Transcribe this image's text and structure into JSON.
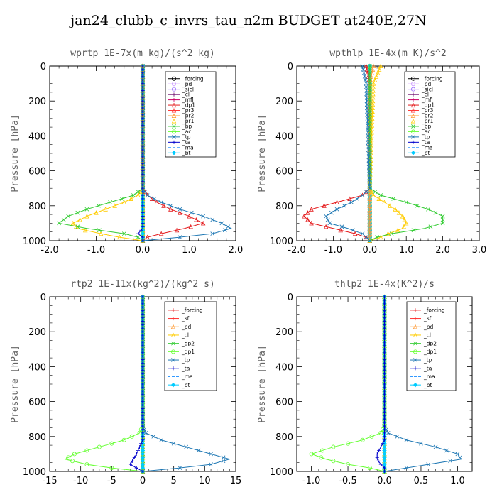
{
  "figure_title": "jan24_clubb_c_invrs_tau_n2m  BUDGET at240E,27N",
  "chart_data": [
    {
      "type": "line",
      "title": "wprtp  1E-7x(m kg)/(s^2 kg)",
      "ylabel": "Pressure [hPa]",
      "xlim": [
        -2.0,
        2.0
      ],
      "ylim": [
        1000,
        0
      ],
      "xticks": [
        -2.0,
        -1.0,
        0.0,
        1.0,
        2.0
      ],
      "xtick_labels": [
        "-2.0",
        "-1.0",
        "0.0",
        "1.0",
        "2.0"
      ],
      "yticks": [
        0,
        200,
        400,
        600,
        800,
        1000
      ],
      "ytick_labels": [
        "0",
        "200",
        "400",
        "600",
        "800",
        "1000"
      ],
      "legend_position": "top-right",
      "pressure": [
        0,
        700,
        740,
        780,
        820,
        860,
        900,
        930,
        960,
        980,
        1000
      ],
      "series": [
        {
          "name": "_forcing",
          "color": "#000000",
          "marker": "circle",
          "values": [
            0,
            0,
            0,
            0,
            0,
            0,
            0,
            0,
            0,
            0,
            0
          ]
        },
        {
          "name": "_pd",
          "color": "#cc99ff",
          "marker": "circle",
          "values": [
            0,
            0,
            0,
            0,
            0,
            0,
            0,
            0,
            0,
            0,
            0
          ]
        },
        {
          "name": "_sicl",
          "color": "#9966ff",
          "marker": "circle",
          "values": [
            0,
            0,
            0,
            0,
            0,
            0,
            0,
            0,
            0,
            0,
            0
          ]
        },
        {
          "name": "_cl",
          "color": "#660066",
          "marker": "plus",
          "values": [
            0,
            0,
            0,
            0,
            0,
            0,
            0,
            0,
            0,
            0,
            0
          ]
        },
        {
          "name": "_mfl",
          "color": "#cc0066",
          "marker": "plus",
          "values": [
            0,
            0,
            0,
            0,
            0,
            0,
            0,
            0,
            0,
            0,
            0
          ]
        },
        {
          "name": "_dp1",
          "color": "#e41a1c",
          "marker": "triangle",
          "values": [
            0,
            0,
            0.1,
            0.3,
            0.6,
            1.0,
            1.3,
            0.9,
            0.4,
            0.1,
            0
          ]
        },
        {
          "name": "_pr3",
          "color": "#ff3333",
          "marker": "triangle",
          "values": [
            0,
            0,
            0,
            0,
            0,
            0,
            0,
            0,
            0,
            0,
            0
          ]
        },
        {
          "name": "_pr2",
          "color": "#ff9933",
          "marker": "triangle",
          "values": [
            0,
            0,
            0,
            0,
            0,
            0,
            0,
            0,
            0,
            0,
            0
          ]
        },
        {
          "name": "_pr1",
          "color": "#ffcc00",
          "marker": "triangle",
          "values": [
            0,
            0,
            -0.1,
            -0.4,
            -0.8,
            -1.2,
            -1.5,
            -1.4,
            -0.9,
            -0.5,
            0
          ]
        },
        {
          "name": "_bp",
          "color": "#33cc33",
          "marker": "cross",
          "values": [
            0,
            0,
            -0.2,
            -0.7,
            -1.2,
            -1.6,
            -1.8,
            -1.2,
            -0.4,
            -0.1,
            0
          ]
        },
        {
          "name": "_ac",
          "color": "#66ff33",
          "marker": "circle",
          "values": [
            0,
            0,
            0,
            0,
            0,
            0,
            0,
            0,
            0,
            0,
            0
          ]
        },
        {
          "name": "_tp",
          "color": "#1f78b4",
          "marker": "cross",
          "values": [
            0,
            0,
            0.1,
            0.4,
            0.8,
            1.3,
            1.7,
            1.9,
            1.5,
            0.8,
            0
          ]
        },
        {
          "name": "_ta",
          "color": "#0000cc",
          "marker": "plus",
          "values": [
            0,
            0,
            0,
            0,
            0,
            0,
            0,
            0,
            -0.1,
            0,
            0
          ]
        },
        {
          "name": "_ma",
          "color": "#3399ff",
          "marker": "none",
          "values": [
            0,
            0,
            0,
            0,
            0,
            0,
            0,
            0,
            0,
            0,
            0
          ]
        },
        {
          "name": "_bt",
          "color": "#00ccff",
          "marker": "diamond",
          "values": [
            0,
            0,
            0,
            0,
            0,
            0,
            0,
            0,
            0,
            0,
            0
          ]
        }
      ]
    },
    {
      "type": "line",
      "title": "wpthlp  1E-4x(m K)/s^2",
      "ylabel": "Pressure [hPa]",
      "xlim": [
        -2.0,
        3.0
      ],
      "ylim": [
        1000,
        0
      ],
      "xticks": [
        -2.0,
        -1.0,
        0.0,
        1.0,
        2.0,
        3.0
      ],
      "xtick_labels": [
        "-2.0",
        "-1.0",
        "0.0",
        "1.0",
        "2.0",
        "3.0"
      ],
      "yticks": [
        0,
        200,
        400,
        600,
        800,
        1000
      ],
      "ytick_labels": [
        "0",
        "200",
        "400",
        "600",
        "800",
        "1000"
      ],
      "legend_position": "top-right",
      "pressure": [
        0,
        100,
        700,
        740,
        780,
        820,
        860,
        900,
        930,
        960,
        980,
        1000
      ],
      "series": [
        {
          "name": "_forcing",
          "color": "#000000",
          "marker": "circle",
          "values": [
            0,
            0,
            0,
            0,
            0,
            0,
            0,
            0,
            0,
            0,
            0,
            0
          ]
        },
        {
          "name": "_pd",
          "color": "#cc99ff",
          "marker": "circle",
          "values": [
            0,
            0,
            0,
            0,
            0,
            0,
            0,
            0,
            0,
            0,
            0,
            0
          ]
        },
        {
          "name": "_sicl",
          "color": "#9966ff",
          "marker": "circle",
          "values": [
            0,
            0,
            0,
            0,
            0,
            0,
            0,
            0,
            0,
            0,
            0,
            0
          ]
        },
        {
          "name": "_cl",
          "color": "#660066",
          "marker": "plus",
          "values": [
            0,
            0,
            0,
            0,
            0,
            0,
            0,
            0,
            0,
            0,
            0,
            0
          ]
        },
        {
          "name": "_mfl",
          "color": "#cc0066",
          "marker": "plus",
          "values": [
            0,
            0,
            0,
            0,
            0,
            0,
            0,
            0,
            0,
            0,
            0,
            0
          ]
        },
        {
          "name": "_dp1",
          "color": "#e41a1c",
          "marker": "triangle",
          "values": [
            -0.1,
            0,
            0,
            -0.2,
            -0.9,
            -1.6,
            -1.8,
            -1.6,
            -1.0,
            -0.4,
            -0.1,
            0
          ]
        },
        {
          "name": "_pr3",
          "color": "#ff3333",
          "marker": "triangle",
          "values": [
            0,
            0,
            0,
            0,
            0,
            0,
            0,
            0,
            0,
            0,
            0,
            0
          ]
        },
        {
          "name": "_pr2",
          "color": "#ff9933",
          "marker": "triangle",
          "values": [
            0.1,
            0,
            0,
            0,
            0,
            0,
            0,
            0,
            0,
            0,
            0,
            0
          ]
        },
        {
          "name": "_pr1",
          "color": "#ffcc00",
          "marker": "triangle",
          "values": [
            0.3,
            0.1,
            0,
            0.1,
            0.4,
            0.7,
            0.9,
            1.0,
            0.9,
            0.5,
            0.3,
            0
          ]
        },
        {
          "name": "_bp",
          "color": "#33cc33",
          "marker": "cross",
          "values": [
            0,
            0,
            0,
            0.3,
            1.0,
            1.6,
            2.0,
            2.0,
            1.5,
            0.6,
            0.2,
            0
          ]
        },
        {
          "name": "_ac",
          "color": "#66ff33",
          "marker": "circle",
          "values": [
            0,
            0,
            0,
            0,
            0,
            0,
            0,
            0,
            0,
            0,
            0,
            0
          ]
        },
        {
          "name": "_tp",
          "color": "#1f78b4",
          "marker": "cross",
          "values": [
            -0.2,
            -0.1,
            0,
            -0.2,
            -0.5,
            -0.9,
            -1.2,
            -1.1,
            -0.6,
            -0.2,
            -0.1,
            0
          ]
        },
        {
          "name": "_ta",
          "color": "#0000cc",
          "marker": "plus",
          "values": [
            0,
            0,
            0,
            0,
            0,
            0,
            0,
            0,
            0,
            0,
            0,
            0
          ]
        },
        {
          "name": "_ma",
          "color": "#3399ff",
          "marker": "none",
          "values": [
            0,
            0,
            0,
            0,
            0,
            0,
            0,
            0,
            0,
            0,
            0,
            0
          ]
        },
        {
          "name": "_bt",
          "color": "#00ccff",
          "marker": "diamond",
          "values": [
            0,
            0,
            0,
            0,
            0,
            0,
            0,
            0,
            0,
            0,
            0,
            0
          ]
        }
      ]
    },
    {
      "type": "line",
      "title": "rtp2  1E-11x(kg^2)/(kg^2 s)",
      "ylabel": "Pressure [hPa]",
      "xlim": [
        -15,
        15
      ],
      "ylim": [
        1000,
        0
      ],
      "xticks": [
        -15,
        -10,
        -5,
        0,
        5,
        10,
        15
      ],
      "xtick_labels": [
        "-15",
        "-10",
        "-5",
        "0",
        "5",
        "10",
        "15"
      ],
      "yticks": [
        0,
        200,
        400,
        600,
        800,
        1000
      ],
      "ytick_labels": [
        "0",
        "200",
        "400",
        "600",
        "800",
        "1000"
      ],
      "legend_position": "top-right",
      "pressure": [
        0,
        740,
        780,
        820,
        860,
        900,
        930,
        960,
        980,
        1000
      ],
      "series": [
        {
          "name": "_forcing",
          "color": "#e41a1c",
          "marker": "plus",
          "values": [
            0,
            0,
            0,
            0,
            0,
            0,
            0,
            0,
            0,
            0
          ]
        },
        {
          "name": "_sf",
          "color": "#ff3333",
          "marker": "plus",
          "values": [
            0,
            0,
            0,
            0,
            0,
            0,
            0,
            0,
            0,
            0
          ]
        },
        {
          "name": "_pd",
          "color": "#ff9933",
          "marker": "triangle",
          "values": [
            0,
            0,
            0,
            0,
            0,
            0,
            0,
            0,
            0,
            0
          ]
        },
        {
          "name": "_cl",
          "color": "#ffcc00",
          "marker": "triangle",
          "values": [
            0,
            0,
            0,
            0,
            0,
            0,
            0,
            0,
            0,
            0
          ]
        },
        {
          "name": "_dp2",
          "color": "#33cc33",
          "marker": "cross",
          "values": [
            0,
            0,
            0,
            0,
            0,
            0,
            0,
            0,
            0,
            0
          ]
        },
        {
          "name": "_dp1",
          "color": "#66ff33",
          "marker": "circle",
          "values": [
            0,
            0,
            -0.5,
            -3,
            -7,
            -11,
            -12.5,
            -9,
            -5,
            0
          ]
        },
        {
          "name": "_tp",
          "color": "#1f78b4",
          "marker": "cross",
          "values": [
            0,
            0,
            0.5,
            3,
            7,
            11,
            14,
            11,
            6,
            0
          ]
        },
        {
          "name": "_ta",
          "color": "#0000cc",
          "marker": "plus",
          "values": [
            0,
            0,
            0,
            0,
            -0.5,
            -1,
            -1.5,
            -2,
            -1,
            0
          ]
        },
        {
          "name": "_ma",
          "color": "#3399ff",
          "marker": "none",
          "values": [
            0,
            0,
            0,
            0,
            0,
            0,
            0,
            0,
            0,
            0
          ]
        },
        {
          "name": "_bt",
          "color": "#00ccff",
          "marker": "diamond",
          "values": [
            0,
            0,
            0,
            0,
            0,
            0,
            0,
            0,
            0,
            0
          ]
        }
      ]
    },
    {
      "type": "line",
      "title": "thlp2  1E-4x(K^2)/s",
      "ylabel": "Pressure [hPa]",
      "xlim": [
        -1.2,
        1.2
      ],
      "ylim": [
        1000,
        0
      ],
      "xticks": [
        -1.0,
        -0.5,
        0.0,
        0.5,
        1.0
      ],
      "xtick_labels": [
        "-1.0",
        "-0.5",
        "0.0",
        "0.5",
        "1.0"
      ],
      "yticks": [
        0,
        200,
        400,
        600,
        800,
        1000
      ],
      "ytick_labels": [
        "0",
        "200",
        "400",
        "600",
        "800",
        "1000"
      ],
      "legend_position": "top-right",
      "pressure": [
        0,
        740,
        780,
        820,
        860,
        900,
        930,
        960,
        980,
        1000
      ],
      "series": [
        {
          "name": "_forcing",
          "color": "#e41a1c",
          "marker": "plus",
          "values": [
            0,
            0,
            0,
            0,
            0,
            0,
            0,
            0,
            0,
            0
          ]
        },
        {
          "name": "_sf",
          "color": "#ff3333",
          "marker": "plus",
          "values": [
            0,
            0,
            0,
            0,
            0,
            0,
            0,
            0,
            0,
            0
          ]
        },
        {
          "name": "_pd",
          "color": "#ff9933",
          "marker": "triangle",
          "values": [
            0,
            0,
            0,
            0,
            0,
            0,
            0,
            0,
            0,
            0
          ]
        },
        {
          "name": "_cl",
          "color": "#ffcc00",
          "marker": "triangle",
          "values": [
            0,
            0,
            0,
            0,
            0,
            0,
            0,
            0,
            0,
            0
          ]
        },
        {
          "name": "_dp2",
          "color": "#33cc33",
          "marker": "cross",
          "values": [
            0,
            0,
            0,
            0,
            0,
            0,
            0,
            0,
            0,
            0
          ]
        },
        {
          "name": "_dp1",
          "color": "#66ff33",
          "marker": "circle",
          "values": [
            0,
            0,
            -0.05,
            -0.3,
            -0.7,
            -1.0,
            -0.8,
            -0.5,
            -0.2,
            0
          ]
        },
        {
          "name": "_tp",
          "color": "#1f78b4",
          "marker": "cross",
          "values": [
            0,
            0,
            0.05,
            0.3,
            0.7,
            1.0,
            1.05,
            0.6,
            0.3,
            0
          ]
        },
        {
          "name": "_ta",
          "color": "#0000cc",
          "marker": "plus",
          "values": [
            0,
            0,
            0,
            0,
            -0.05,
            -0.1,
            -0.1,
            -0.05,
            0,
            0
          ]
        },
        {
          "name": "_ma",
          "color": "#3399ff",
          "marker": "none",
          "values": [
            0,
            0,
            0,
            0,
            0,
            0,
            0,
            0,
            0,
            0
          ]
        },
        {
          "name": "_bt",
          "color": "#00ccff",
          "marker": "diamond",
          "values": [
            0,
            0,
            0,
            0,
            0,
            0,
            0,
            0,
            0,
            0
          ]
        }
      ]
    }
  ]
}
